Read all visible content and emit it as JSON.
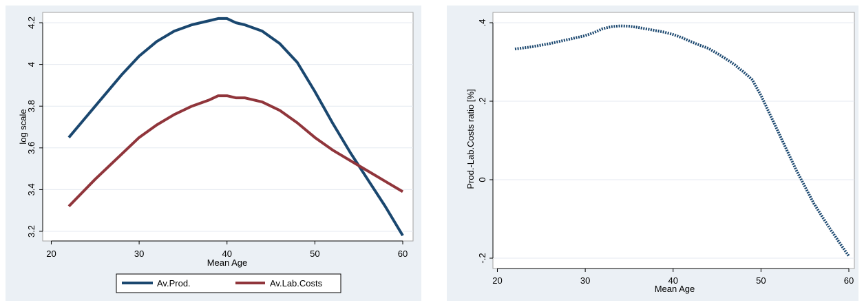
{
  "colors": {
    "navy": "#1a476f",
    "maroon": "#90353b",
    "frame": "#ebf0f5"
  },
  "chart_data": [
    {
      "type": "line",
      "xlabel": "Mean Age",
      "ylabel": "log scale",
      "xlim": [
        22,
        60
      ],
      "ylim": [
        3.2,
        4.2
      ],
      "x_ticks": [
        20,
        30,
        40,
        50,
        60
      ],
      "x_tick_labels": [
        "20",
        "30",
        "40",
        "50",
        "60"
      ],
      "y_ticks": [
        3.2,
        3.4,
        3.6,
        3.8,
        4.0,
        4.2
      ],
      "y_tick_labels": [
        "3.2",
        "3.4",
        "3.6",
        "3.8",
        "4",
        "4.2"
      ],
      "grid": true,
      "legend": "bottom",
      "series": [
        {
          "name": "Av.Prod.",
          "color": "#1a476f",
          "x": [
            22,
            25,
            28,
            30,
            32,
            34,
            36,
            37,
            38,
            39,
            40,
            41,
            42,
            44,
            46,
            48,
            50,
            52,
            54,
            56,
            58,
            60
          ],
          "y": [
            3.65,
            3.8,
            3.95,
            4.04,
            4.11,
            4.16,
            4.19,
            4.2,
            4.21,
            4.22,
            4.22,
            4.2,
            4.19,
            4.16,
            4.1,
            4.01,
            3.87,
            3.72,
            3.58,
            3.45,
            3.32,
            3.18
          ]
        },
        {
          "name": "Av.Lab.Costs",
          "color": "#90353b",
          "x": [
            22,
            25,
            28,
            30,
            32,
            34,
            36,
            38,
            39,
            40,
            41,
            42,
            44,
            46,
            48,
            50,
            52,
            54,
            56,
            58,
            60
          ],
          "y": [
            3.32,
            3.45,
            3.57,
            3.65,
            3.71,
            3.76,
            3.8,
            3.83,
            3.85,
            3.85,
            3.84,
            3.84,
            3.82,
            3.78,
            3.72,
            3.65,
            3.59,
            3.54,
            3.49,
            3.44,
            3.39
          ]
        }
      ]
    },
    {
      "type": "scatter",
      "xlabel": "Mean Age",
      "ylabel": "Prod.-Lab.Costs ratio [%]",
      "xlim": [
        22,
        60
      ],
      "ylim": [
        -0.2,
        0.4
      ],
      "x_ticks": [
        20,
        30,
        40,
        50,
        60
      ],
      "x_tick_labels": [
        "20",
        "30",
        "40",
        "50",
        "60"
      ],
      "y_ticks": [
        -0.2,
        0.0,
        0.2,
        0.4
      ],
      "y_tick_labels": [
        "-.2",
        "0",
        ".2",
        ".4"
      ],
      "grid": true,
      "series": [
        {
          "name": "",
          "color": "#1a476f",
          "x": [
            22,
            24,
            26,
            28,
            30,
            31,
            32,
            33,
            34,
            35,
            36,
            37,
            38,
            39,
            40,
            41,
            42,
            43,
            44,
            45,
            46,
            47,
            48,
            49,
            50,
            52,
            54,
            56,
            58,
            60
          ],
          "y": [
            0.333,
            0.339,
            0.347,
            0.357,
            0.367,
            0.375,
            0.385,
            0.39,
            0.392,
            0.391,
            0.388,
            0.384,
            0.38,
            0.376,
            0.37,
            0.362,
            0.352,
            0.343,
            0.335,
            0.322,
            0.308,
            0.293,
            0.275,
            0.255,
            0.215,
            0.12,
            0.025,
            -0.06,
            -0.13,
            -0.195
          ]
        }
      ]
    }
  ]
}
